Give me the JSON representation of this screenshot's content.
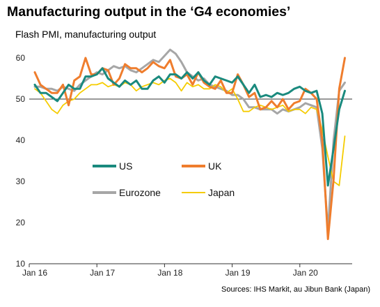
{
  "title": "Manufacturing output in the ‘G4 economies’",
  "subtitle": "Flash PMI, manufacturing output",
  "source": "Sources: IHS Markit, au Jibun Bank (Japan)",
  "chart_data": {
    "type": "line",
    "ylim": [
      10,
      62
    ],
    "yticks": [
      10,
      20,
      30,
      40,
      50,
      60
    ],
    "reference_line": 50,
    "grid": false,
    "legend": "inside-center-left",
    "xlabel": "",
    "ylabel": "",
    "x_start": "Jan 16",
    "xticks": [
      {
        "label": "Jan 16",
        "index": 0
      },
      {
        "label": "Jan 17",
        "index": 12
      },
      {
        "label": "Jan 18",
        "index": 24
      },
      {
        "label": "Jan 19",
        "index": 36
      },
      {
        "label": "Jan 20",
        "index": 48
      }
    ],
    "series": [
      {
        "name": "US",
        "color": "#1a8a7e",
        "values": [
          53.5,
          51.5,
          51.5,
          50.5,
          49.5,
          51.5,
          53.5,
          52.5,
          52.5,
          55.5,
          55.5,
          56.0,
          57.5,
          55.0,
          54.0,
          53.0,
          54.5,
          53.5,
          54.5,
          52.5,
          52.5,
          54.5,
          55.5,
          54.0,
          56.0,
          56.0,
          55.0,
          56.5,
          55.0,
          56.5,
          54.5,
          53.5,
          55.5,
          55.0,
          54.5,
          54.0,
          55.5,
          53.5,
          51.5,
          53.5,
          50.5,
          51.0,
          50.5,
          51.5,
          51.0,
          51.5,
          52.5,
          53.0,
          52.0,
          51.5,
          52.0,
          46.5,
          29.0,
          38.0,
          47.5,
          52.0
        ]
      },
      {
        "name": "UK",
        "color": "#ef7d2d",
        "values": [
          56.5,
          53.5,
          52.5,
          51.5,
          51.5,
          53.5,
          48.5,
          54.5,
          55.5,
          60.0,
          56.0,
          56.0,
          57.5,
          57.0,
          53.5,
          55.0,
          58.5,
          57.5,
          57.5,
          56.5,
          57.5,
          59.0,
          58.0,
          57.5,
          59.5,
          55.5,
          55.0,
          56.0,
          53.5,
          56.5,
          54.0,
          53.0,
          52.5,
          54.5,
          51.5,
          51.5,
          56.0,
          53.5,
          50.5,
          51.5,
          47.5,
          48.0,
          49.5,
          48.0,
          50.0,
          47.5,
          49.0,
          49.5,
          52.5,
          51.5,
          50.0,
          40.0,
          16.0,
          30.5,
          52.5,
          60.0
        ]
      },
      {
        "name": "Eurozone",
        "color": "#a6a6a6",
        "values": [
          53.0,
          53.0,
          52.5,
          52.5,
          52.0,
          53.0,
          52.5,
          52.0,
          53.5,
          54.5,
          55.5,
          56.5,
          56.0,
          57.0,
          58.0,
          57.5,
          58.0,
          57.0,
          56.5,
          57.5,
          58.5,
          59.5,
          59.0,
          60.5,
          62.0,
          61.0,
          59.0,
          56.5,
          55.5,
          54.5,
          55.0,
          53.5,
          53.0,
          52.5,
          52.0,
          51.0,
          51.0,
          50.0,
          48.0,
          48.0,
          47.5,
          47.5,
          47.5,
          46.5,
          47.5,
          47.0,
          47.5,
          48.0,
          49.0,
          48.5,
          48.0,
          38.0,
          18.0,
          40.0,
          52.0,
          54.0
        ]
      },
      {
        "name": "Japan",
        "color": "#f5cc00",
        "values": [
          52.5,
          51.5,
          49.5,
          47.5,
          46.5,
          48.5,
          49.5,
          50.0,
          51.5,
          52.5,
          53.5,
          53.5,
          54.0,
          53.0,
          53.5,
          53.0,
          54.0,
          53.5,
          52.0,
          53.0,
          53.5,
          54.0,
          53.5,
          54.5,
          55.0,
          54.0,
          52.0,
          54.0,
          53.0,
          53.5,
          52.5,
          52.5,
          53.5,
          53.0,
          51.5,
          52.5,
          50.0,
          47.0,
          47.0,
          48.0,
          48.5,
          48.0,
          47.5,
          48.0,
          48.5,
          47.0,
          47.5,
          47.5,
          46.5,
          48.0,
          47.5,
          42.5,
          36.0,
          30.0,
          29.0,
          41.0
        ]
      }
    ]
  }
}
